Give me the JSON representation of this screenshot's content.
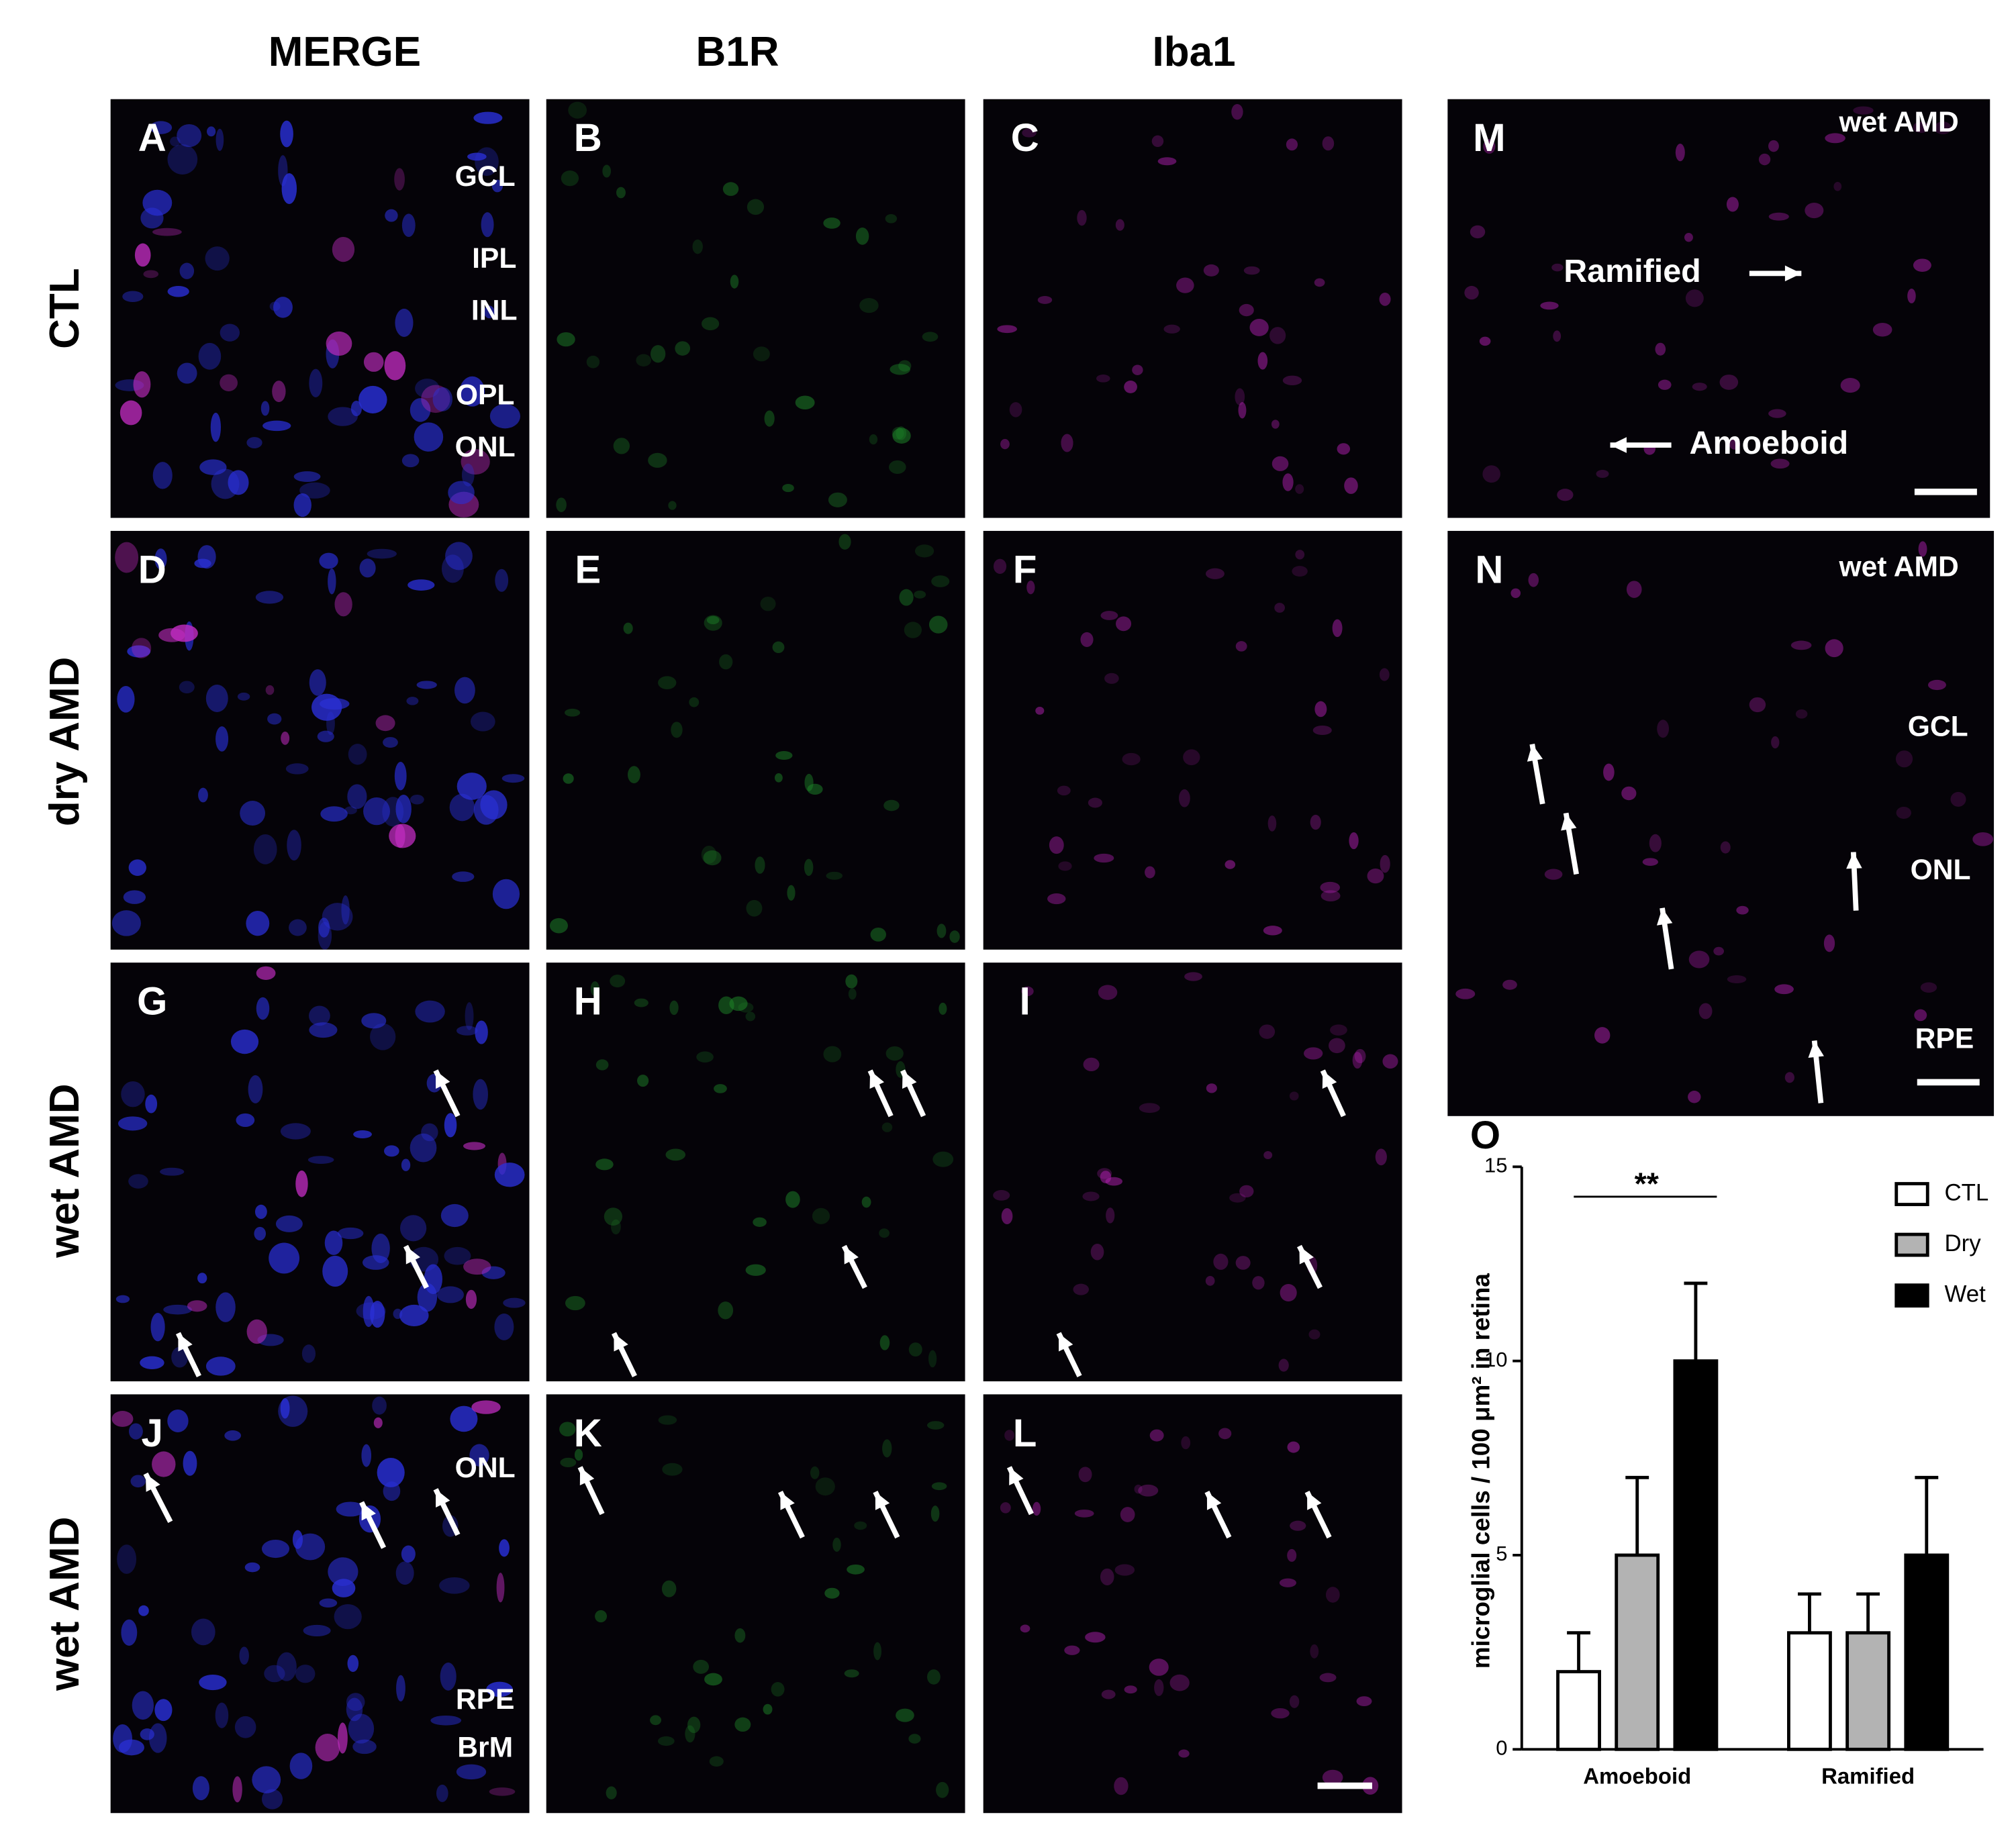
{
  "figure": {
    "column_headers": [
      "MERGE",
      "B1R",
      "Iba1"
    ],
    "row_labels": [
      "CTL",
      "dry AMD",
      "wet AMD",
      "wet AMD"
    ],
    "panels": [
      {
        "label": "A",
        "annotations": [
          "GCL",
          "IPL",
          "INL",
          "OPL",
          "ONL"
        ]
      },
      {
        "label": "B"
      },
      {
        "label": "C"
      },
      {
        "label": "D"
      },
      {
        "label": "E"
      },
      {
        "label": "F"
      },
      {
        "label": "G"
      },
      {
        "label": "H"
      },
      {
        "label": "I"
      },
      {
        "label": "J",
        "annotations": [
          "ONL",
          "RPE",
          "BrM"
        ]
      },
      {
        "label": "K"
      },
      {
        "label": "L"
      },
      {
        "label": "M",
        "annotations": [
          "wet AMD",
          "Ramified",
          "Amoeboid"
        ]
      },
      {
        "label": "N",
        "annotations": [
          "wet AMD",
          "GCL",
          "ONL",
          "RPE"
        ]
      },
      {
        "label": "O"
      }
    ]
  },
  "chart_data": {
    "type": "bar",
    "ylabel": "microglial cells / 100 μm² in retina",
    "categories": [
      "Amoeboid",
      "Ramified"
    ],
    "series": [
      {
        "name": "CTL",
        "color": "#ffffff",
        "values": [
          2,
          3
        ],
        "errors": [
          1,
          1
        ]
      },
      {
        "name": "Dry",
        "color": "#b3b3b3",
        "values": [
          5,
          3
        ],
        "errors": [
          2,
          1
        ]
      },
      {
        "name": "Wet",
        "color": "#000000",
        "values": [
          10,
          5
        ],
        "errors": [
          2,
          2
        ]
      }
    ],
    "significance": "**",
    "ylim": [
      0,
      15
    ],
    "yticks": [
      0,
      5,
      10,
      15
    ],
    "legend": "upper right"
  }
}
